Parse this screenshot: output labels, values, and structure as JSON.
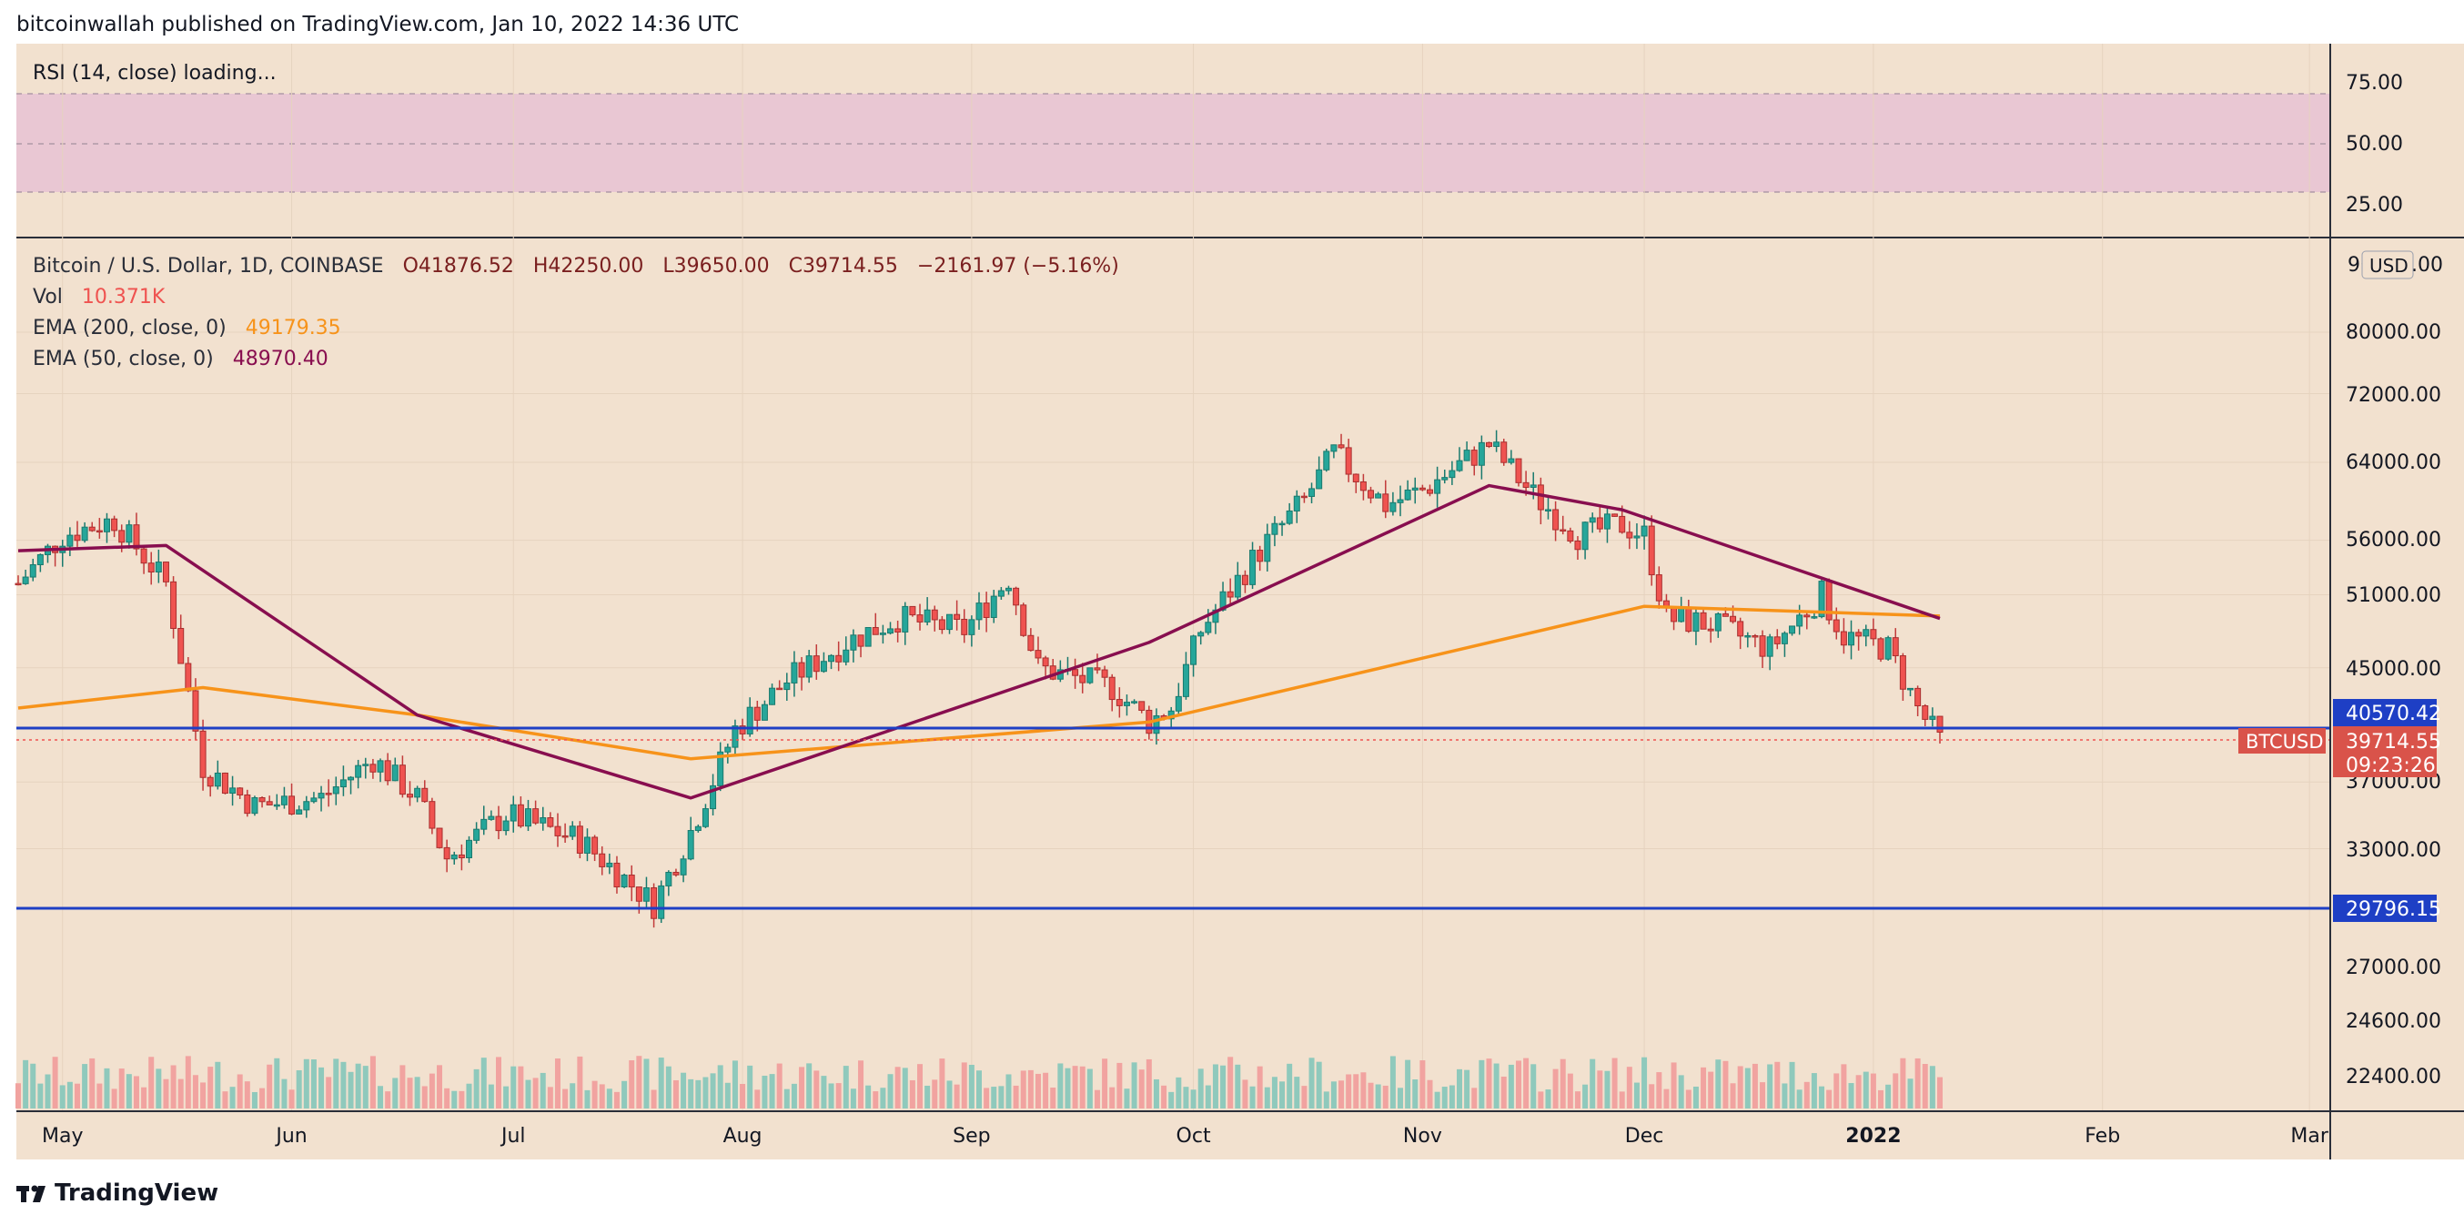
{
  "header": {
    "publisher": "bitcoinwallah published on TradingView.com, Jan 10, 2022 14:36 UTC"
  },
  "rsi": {
    "label": "RSI (14, close) loading...",
    "ticks": [
      "75.00",
      "50.00",
      "25.00"
    ]
  },
  "symbol": {
    "name": "Bitcoin / U.S. Dollar, 1D, COINBASE",
    "open": "O41876.52",
    "high": "H42250.00",
    "low": "L39650.00",
    "close": "C39714.55",
    "change": "−2161.97 (−5.16%)"
  },
  "indicators": {
    "vol_label": "Vol",
    "vol_value": "10.371K",
    "ema200_label": "EMA (200, close, 0)",
    "ema200_value": "49179.35",
    "ema50_label": "EMA (50, close, 0)",
    "ema50_value": "48970.40"
  },
  "price_axis": {
    "currency": "USD",
    "top_partial": "90000.00",
    "ticks": [
      "80000.00",
      "72000.00",
      "64000.00",
      "56000.00",
      "51000.00",
      "45000.00",
      "37000.00",
      "33000.00",
      "27000.00",
      "24600.00",
      "22400.00"
    ]
  },
  "levels": {
    "upper": "40570.42",
    "lower": "29796.15",
    "ticker": "BTCUSD",
    "last_price": "39714.55",
    "countdown": "09:23:26"
  },
  "time_axis": [
    "May",
    "Jun",
    "Jul",
    "Aug",
    "Sep",
    "Oct",
    "Nov",
    "Dec",
    "2022",
    "Feb",
    "Mar"
  ],
  "footer": {
    "brand": "TradingView"
  },
  "colors": {
    "background": "#f2e1cf",
    "up": "#26a69a",
    "down": "#ef5350",
    "ema200": "#f7931a",
    "ema50": "#880e4f",
    "level_line": "#1e3fc5",
    "rsi_band": "#e9c7d3"
  },
  "chart_data": {
    "type": "candlestick",
    "title": "Bitcoin / U.S. Dollar, 1D, COINBASE",
    "x": [
      "2021-04-25",
      "2021-05-01",
      "2021-05-08",
      "2021-05-15",
      "2021-05-20",
      "2021-05-27",
      "2021-06-05",
      "2021-06-12",
      "2021-06-18",
      "2021-06-22",
      "2021-06-30",
      "2021-07-10",
      "2021-07-20",
      "2021-07-25",
      "2021-07-31",
      "2021-08-07",
      "2021-08-15",
      "2021-08-22",
      "2021-08-31",
      "2021-09-06",
      "2021-09-10",
      "2021-09-20",
      "2021-09-25",
      "2021-09-28",
      "2021-10-02",
      "2021-10-10",
      "2021-10-16",
      "2021-10-20",
      "2021-10-27",
      "2021-11-01",
      "2021-11-10",
      "2021-11-16",
      "2021-11-22",
      "2021-11-28",
      "2021-12-01",
      "2021-12-04",
      "2021-12-10",
      "2021-12-18",
      "2021-12-25",
      "2021-12-28",
      "2022-01-03",
      "2022-01-07",
      "2022-01-10"
    ],
    "close": [
      52000,
      56500,
      58000,
      52000,
      38000,
      35500,
      36000,
      38500,
      36000,
      32500,
      35000,
      33500,
      30000,
      34000,
      40500,
      44000,
      47000,
      49000,
      48000,
      52500,
      45000,
      43500,
      41000,
      42000,
      48000,
      55000,
      60000,
      65000,
      59500,
      61000,
      66000,
      60500,
      56500,
      57500,
      56500,
      49000,
      48500,
      46500,
      51000,
      47500,
      46500,
      42000,
      39714.55
    ],
    "ema200": [
      42000,
      null,
      null,
      null,
      43500,
      null,
      null,
      null,
      41500,
      null,
      null,
      null,
      null,
      38500,
      null,
      null,
      null,
      null,
      null,
      null,
      null,
      null,
      41000,
      null,
      null,
      null,
      null,
      null,
      null,
      null,
      null,
      null,
      null,
      null,
      50000,
      null,
      null,
      null,
      null,
      null,
      null,
      null,
      49179.35
    ],
    "ema50": [
      55000,
      null,
      null,
      55500,
      null,
      null,
      null,
      null,
      41500,
      null,
      null,
      null,
      null,
      36000,
      null,
      null,
      null,
      null,
      null,
      null,
      null,
      null,
      47000,
      null,
      null,
      null,
      null,
      null,
      null,
      null,
      61500,
      null,
      null,
      59000,
      null,
      null,
      null,
      null,
      null,
      null,
      null,
      null,
      48970.4
    ],
    "levels": [
      40570.42,
      29796.15
    ],
    "ylabel": "USD",
    "log_scale": true,
    "grid": true
  }
}
